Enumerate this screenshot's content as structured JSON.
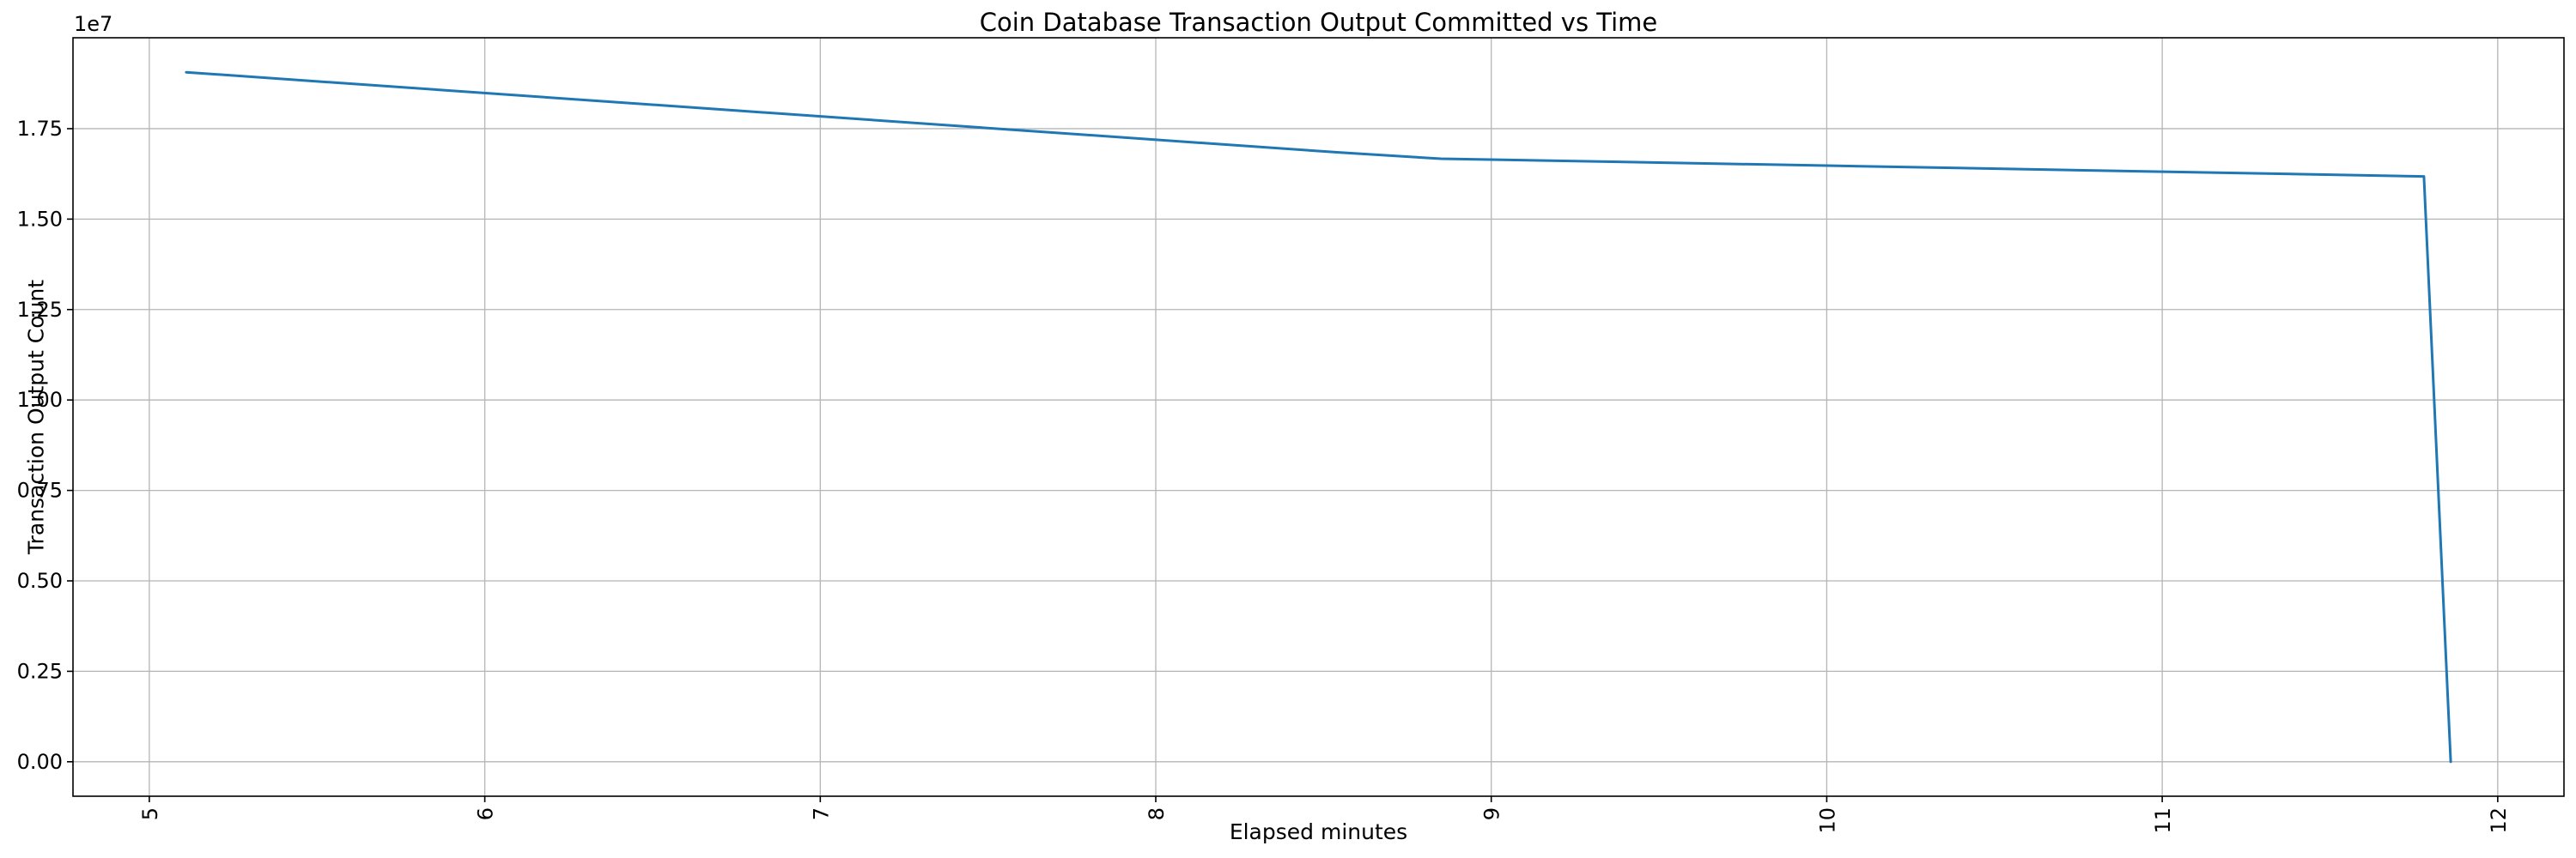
{
  "chart_data": {
    "type": "line",
    "title": "Coin Database Transaction Output Committed vs Time",
    "xlabel": "Elapsed minutes",
    "ylabel": "Transaction Output Count",
    "y_offset_text": "1e7",
    "grid": true,
    "legend": "none",
    "line_color": "#1f77b4",
    "grid_color": "#b5b5b5",
    "spine_color": "#000000",
    "x": [
      5.11,
      8.55,
      8.85,
      10.0,
      11.0,
      11.78,
      11.86
    ],
    "y": [
      19060000,
      16840000,
      16670000,
      16480000,
      16310000,
      16180000,
      0
    ],
    "xlim": [
      4.7725,
      12.1975
    ],
    "ylim": [
      -953000,
      20013000
    ],
    "xticks": [
      5,
      6,
      7,
      8,
      9,
      10,
      11,
      12
    ],
    "xtick_labels": [
      "5",
      "6",
      "7",
      "8",
      "9",
      "10",
      "11",
      "12"
    ],
    "xtick_rotation_deg": -90,
    "yticks": [
      0,
      2500000,
      5000000,
      7500000,
      10000000,
      12500000,
      15000000,
      17500000
    ],
    "ytick_labels": [
      "0.00",
      "0.25",
      "0.50",
      "0.75",
      "1.00",
      "1.25",
      "1.50",
      "1.75"
    ]
  }
}
